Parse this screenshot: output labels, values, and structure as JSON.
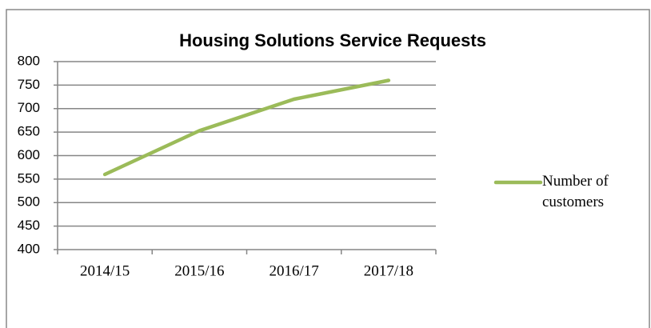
{
  "chart_data": {
    "type": "line",
    "title": "Housing Solutions Service Requests",
    "categories": [
      "2014/15",
      "2015/16",
      "2016/17",
      "2017/18"
    ],
    "series": [
      {
        "name": "Number of customers",
        "color": "#9bbb59",
        "values": [
          560,
          653,
          720,
          760
        ]
      }
    ],
    "ylim": [
      400,
      800
    ],
    "yticks": [
      400,
      450,
      500,
      550,
      600,
      650,
      700,
      750,
      800
    ],
    "grid": true,
    "legend": "right"
  }
}
